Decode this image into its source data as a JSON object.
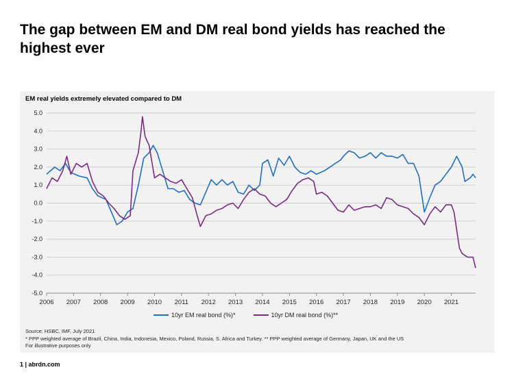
{
  "title": "The gap between EM and DM real bond yields has reached the highest ever",
  "chart_heading": "EM real yields extremely elevated compared to DM",
  "source_lines": [
    "Source: HSBC, IMF, July 2021",
    "* PPP weighted  average  of Brazil, China, India, Indonesia,  Mexico, Poland, Russia, S. Africa and Turkey. ** PPP weighted average  of Germany, Japan, UK and the US",
    "For illustrative purposes only"
  ],
  "footer": "1 | abrdn.com",
  "colors": {
    "em": "#1f6fbf",
    "dm": "#7b2a83",
    "grid": "#cfcfcf",
    "panel": "#f2f2f2"
  },
  "chart_data": {
    "type": "line",
    "title": "",
    "xlabel": "",
    "ylabel": "",
    "xlim": [
      2006.0,
      2021.9
    ],
    "ylim": [
      -5.0,
      5.0
    ],
    "grid": true,
    "legend_position": "bottom",
    "x_ticks": [
      "2006",
      "2007",
      "2008",
      "2009",
      "2010",
      "2011",
      "2012",
      "2013",
      "2014",
      "2015",
      "2016",
      "2017",
      "2018",
      "2019",
      "2020",
      "2021"
    ],
    "y_ticks": [
      "5.0",
      "4.0",
      "3.0",
      "2.0",
      "1.0",
      "0.0",
      "-1.0",
      "-2.0",
      "-3.0",
      "-4.0",
      "-5.0"
    ],
    "series": [
      {
        "name": "10yr EM real bond (%)*",
        "points": [
          [
            2006.0,
            1.6
          ],
          [
            2006.3,
            2.0
          ],
          [
            2006.5,
            1.8
          ],
          [
            2006.7,
            2.2
          ],
          [
            2006.9,
            1.7
          ],
          [
            2007.2,
            1.5
          ],
          [
            2007.5,
            1.4
          ],
          [
            2007.7,
            0.8
          ],
          [
            2007.9,
            0.4
          ],
          [
            2008.2,
            0.2
          ],
          [
            2008.4,
            -0.5
          ],
          [
            2008.6,
            -1.2
          ],
          [
            2008.8,
            -1.0
          ],
          [
            2009.0,
            -0.5
          ],
          [
            2009.2,
            -0.3
          ],
          [
            2009.4,
            1.0
          ],
          [
            2009.6,
            2.5
          ],
          [
            2009.8,
            2.8
          ],
          [
            2009.95,
            3.2
          ],
          [
            2010.1,
            2.8
          ],
          [
            2010.3,
            1.8
          ],
          [
            2010.5,
            0.8
          ],
          [
            2010.7,
            0.8
          ],
          [
            2010.9,
            0.6
          ],
          [
            2011.1,
            0.7
          ],
          [
            2011.3,
            0.2
          ],
          [
            2011.5,
            0.0
          ],
          [
            2011.7,
            -0.1
          ],
          [
            2011.9,
            0.6
          ],
          [
            2012.1,
            1.3
          ],
          [
            2012.3,
            1.0
          ],
          [
            2012.5,
            1.3
          ],
          [
            2012.7,
            1.0
          ],
          [
            2012.9,
            1.2
          ],
          [
            2013.1,
            0.6
          ],
          [
            2013.3,
            0.5
          ],
          [
            2013.5,
            1.0
          ],
          [
            2013.7,
            0.7
          ],
          [
            2013.9,
            1.0
          ],
          [
            2014.0,
            2.2
          ],
          [
            2014.2,
            2.4
          ],
          [
            2014.4,
            1.5
          ],
          [
            2014.6,
            2.5
          ],
          [
            2014.8,
            2.1
          ],
          [
            2015.0,
            2.6
          ],
          [
            2015.2,
            2.0
          ],
          [
            2015.4,
            1.7
          ],
          [
            2015.6,
            1.6
          ],
          [
            2015.8,
            1.8
          ],
          [
            2016.0,
            1.6
          ],
          [
            2016.3,
            1.8
          ],
          [
            2016.5,
            2.0
          ],
          [
            2016.7,
            2.2
          ],
          [
            2016.9,
            2.4
          ],
          [
            2017.0,
            2.6
          ],
          [
            2017.2,
            2.9
          ],
          [
            2017.4,
            2.8
          ],
          [
            2017.6,
            2.5
          ],
          [
            2017.8,
            2.6
          ],
          [
            2018.0,
            2.8
          ],
          [
            2018.2,
            2.5
          ],
          [
            2018.4,
            2.8
          ],
          [
            2018.6,
            2.6
          ],
          [
            2018.8,
            2.6
          ],
          [
            2019.0,
            2.5
          ],
          [
            2019.2,
            2.7
          ],
          [
            2019.4,
            2.2
          ],
          [
            2019.6,
            2.2
          ],
          [
            2019.8,
            1.5
          ],
          [
            2020.0,
            -0.5
          ],
          [
            2020.2,
            0.3
          ],
          [
            2020.4,
            1.0
          ],
          [
            2020.6,
            1.2
          ],
          [
            2020.8,
            1.6
          ],
          [
            2021.0,
            2.0
          ],
          [
            2021.2,
            2.6
          ],
          [
            2021.4,
            2.0
          ],
          [
            2021.5,
            1.2
          ],
          [
            2021.7,
            1.4
          ],
          [
            2021.8,
            1.6
          ],
          [
            2021.9,
            1.4
          ]
        ]
      },
      {
        "name": "10yr DM real bond (%)**",
        "points": [
          [
            2006.0,
            0.8
          ],
          [
            2006.2,
            1.4
          ],
          [
            2006.4,
            1.2
          ],
          [
            2006.6,
            1.8
          ],
          [
            2006.75,
            2.6
          ],
          [
            2006.9,
            1.6
          ],
          [
            2007.1,
            2.2
          ],
          [
            2007.3,
            2.0
          ],
          [
            2007.5,
            2.2
          ],
          [
            2007.7,
            1.2
          ],
          [
            2007.9,
            0.6
          ],
          [
            2008.1,
            0.4
          ],
          [
            2008.3,
            0.0
          ],
          [
            2008.5,
            -0.3
          ],
          [
            2008.7,
            -0.7
          ],
          [
            2008.9,
            -0.9
          ],
          [
            2009.1,
            -0.7
          ],
          [
            2009.2,
            1.8
          ],
          [
            2009.4,
            2.8
          ],
          [
            2009.5,
            4.0
          ],
          [
            2009.55,
            4.8
          ],
          [
            2009.65,
            3.7
          ],
          [
            2009.8,
            3.2
          ],
          [
            2010.0,
            1.4
          ],
          [
            2010.2,
            1.6
          ],
          [
            2010.4,
            1.4
          ],
          [
            2010.6,
            1.2
          ],
          [
            2010.8,
            1.1
          ],
          [
            2011.0,
            1.3
          ],
          [
            2011.2,
            0.8
          ],
          [
            2011.4,
            0.3
          ],
          [
            2011.6,
            -0.8
          ],
          [
            2011.7,
            -1.3
          ],
          [
            2011.9,
            -0.7
          ],
          [
            2012.1,
            -0.6
          ],
          [
            2012.3,
            -0.4
          ],
          [
            2012.5,
            -0.3
          ],
          [
            2012.7,
            -0.1
          ],
          [
            2012.9,
            0.0
          ],
          [
            2013.1,
            -0.3
          ],
          [
            2013.3,
            0.2
          ],
          [
            2013.5,
            0.6
          ],
          [
            2013.7,
            0.8
          ],
          [
            2013.9,
            0.5
          ],
          [
            2014.1,
            0.4
          ],
          [
            2014.3,
            0.0
          ],
          [
            2014.5,
            -0.2
          ],
          [
            2014.7,
            0.0
          ],
          [
            2014.9,
            0.2
          ],
          [
            2015.1,
            0.7
          ],
          [
            2015.3,
            1.1
          ],
          [
            2015.5,
            1.3
          ],
          [
            2015.7,
            1.4
          ],
          [
            2015.9,
            1.2
          ],
          [
            2016.0,
            0.5
          ],
          [
            2016.2,
            0.6
          ],
          [
            2016.4,
            0.4
          ],
          [
            2016.6,
            0.0
          ],
          [
            2016.8,
            -0.4
          ],
          [
            2017.0,
            -0.5
          ],
          [
            2017.2,
            -0.1
          ],
          [
            2017.4,
            -0.4
          ],
          [
            2017.6,
            -0.3
          ],
          [
            2017.8,
            -0.2
          ],
          [
            2018.0,
            -0.2
          ],
          [
            2018.2,
            -0.1
          ],
          [
            2018.4,
            -0.3
          ],
          [
            2018.6,
            0.3
          ],
          [
            2018.8,
            0.2
          ],
          [
            2019.0,
            -0.1
          ],
          [
            2019.2,
            -0.2
          ],
          [
            2019.4,
            -0.3
          ],
          [
            2019.6,
            -0.6
          ],
          [
            2019.8,
            -0.8
          ],
          [
            2020.0,
            -1.2
          ],
          [
            2020.2,
            -0.6
          ],
          [
            2020.4,
            -0.2
          ],
          [
            2020.6,
            -0.5
          ],
          [
            2020.8,
            -0.1
          ],
          [
            2021.0,
            -0.1
          ],
          [
            2021.1,
            -0.5
          ],
          [
            2021.2,
            -1.5
          ],
          [
            2021.3,
            -2.5
          ],
          [
            2021.4,
            -2.8
          ],
          [
            2021.6,
            -3.0
          ],
          [
            2021.8,
            -3.0
          ],
          [
            2021.9,
            -3.6
          ]
        ]
      }
    ]
  }
}
